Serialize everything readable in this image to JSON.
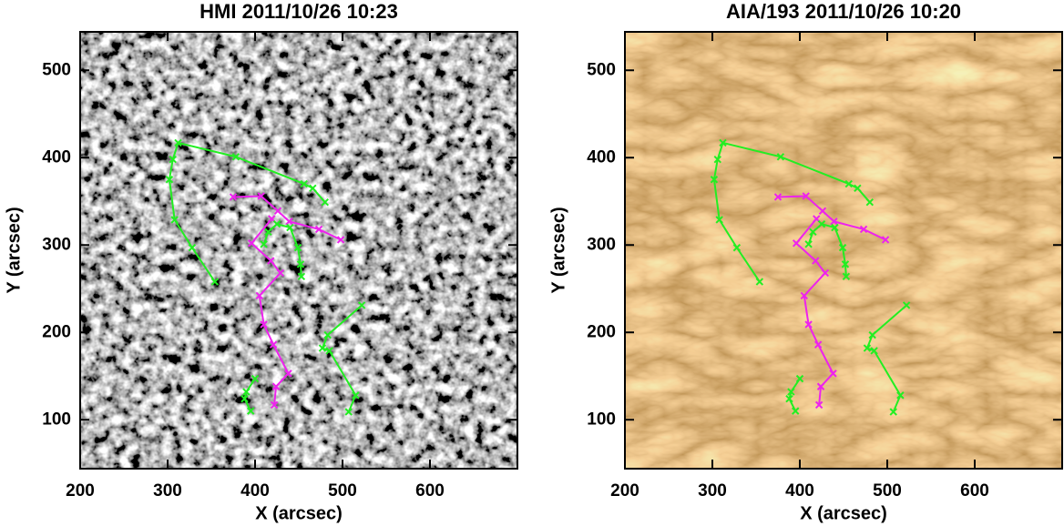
{
  "chart_data": [
    {
      "type": "line",
      "title": "HMI 2011/10/26 10:23",
      "xlabel": "X (arcsec)",
      "ylabel": "Y (arcsec)",
      "xlim": [
        200,
        700
      ],
      "ylim": [
        44,
        544
      ],
      "xticks": [
        200,
        300,
        400,
        500,
        600
      ],
      "yticks": [
        100,
        200,
        300,
        400,
        500
      ],
      "background": "magnetogram",
      "series": [
        {
          "color": "#22ee22",
          "x": [
            354,
            328,
            308,
            302,
            306,
            312,
            378,
            456,
            466,
            480
          ],
          "y": [
            258,
            297,
            329,
            375,
            398,
            417,
            401,
            370,
            365,
            349
          ]
        },
        {
          "color": "#ee22ee",
          "x": [
            498,
            473,
            439,
            426,
            407,
            375
          ],
          "y": [
            306,
            318,
            327,
            339,
            356,
            355
          ]
        },
        {
          "color": "#ee22ee",
          "x": [
            419,
            396,
            418,
            429,
            405,
            410,
            421,
            438,
            424,
            422
          ],
          "y": [
            330,
            302,
            282,
            268,
            242,
            209,
            186,
            153,
            138,
            117
          ]
        },
        {
          "color": "#22ee22",
          "x": [
            410,
            415,
            425,
            440,
            449,
            452,
            453
          ],
          "y": [
            301,
            315,
            324,
            320,
            297,
            278,
            264
          ]
        },
        {
          "color": "#22ee22",
          "x": [
            522,
            483,
            477,
            485,
            515,
            507
          ],
          "y": [
            231,
            197,
            182,
            179,
            128,
            109
          ]
        },
        {
          "color": "#22ee22",
          "x": [
            400,
            390,
            388,
            395
          ],
          "y": [
            147,
            132,
            124,
            110
          ]
        }
      ]
    },
    {
      "type": "line",
      "title": "AIA/193 2011/10/26 10:20",
      "xlabel": "X (arcsec)",
      "ylabel": "Y (arcsec)",
      "xlim": [
        200,
        700
      ],
      "ylim": [
        44,
        544
      ],
      "xticks": [
        200,
        300,
        400,
        500,
        600
      ],
      "yticks": [
        100,
        200,
        300,
        400,
        500
      ],
      "background": "euv",
      "series": [
        {
          "color": "#22ee22",
          "x": [
            354,
            328,
            308,
            302,
            306,
            312,
            378,
            456,
            466,
            480
          ],
          "y": [
            258,
            297,
            329,
            375,
            398,
            417,
            401,
            370,
            365,
            349
          ]
        },
        {
          "color": "#ee22ee",
          "x": [
            498,
            473,
            439,
            426,
            407,
            375
          ],
          "y": [
            306,
            318,
            327,
            339,
            356,
            355
          ]
        },
        {
          "color": "#ee22ee",
          "x": [
            419,
            396,
            418,
            429,
            405,
            410,
            421,
            438,
            424,
            422
          ],
          "y": [
            330,
            302,
            282,
            268,
            242,
            209,
            186,
            153,
            138,
            117
          ]
        },
        {
          "color": "#22ee22",
          "x": [
            410,
            415,
            425,
            440,
            449,
            452,
            453
          ],
          "y": [
            301,
            315,
            324,
            320,
            297,
            278,
            264
          ]
        },
        {
          "color": "#22ee22",
          "x": [
            522,
            483,
            477,
            485,
            515,
            507
          ],
          "y": [
            231,
            197,
            182,
            179,
            128,
            109
          ]
        },
        {
          "color": "#22ee22",
          "x": [
            400,
            390,
            388,
            395
          ],
          "y": [
            147,
            132,
            124,
            110
          ]
        }
      ]
    }
  ]
}
